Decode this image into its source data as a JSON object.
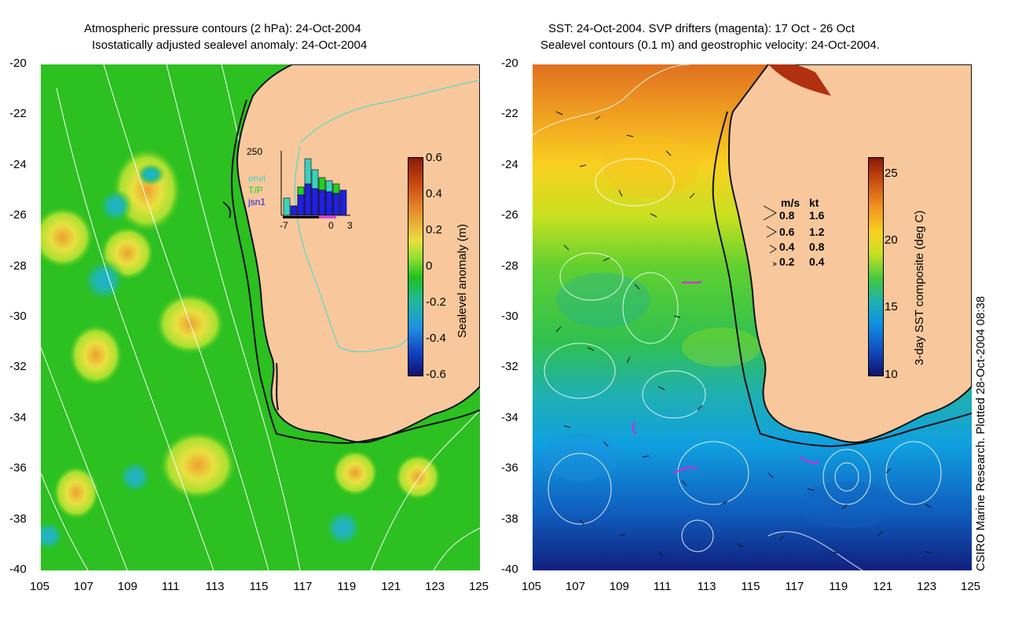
{
  "left": {
    "title1": "Atmospheric pressure contours (2 hPa): 24-Oct-2004",
    "title2": "Isostatically adjusted sealevel anomaly: 24-Oct-2004",
    "colorbar_label": "Sealevel anomaly (m)",
    "colorbar_ticks": [
      "0.6",
      "0.4",
      "0.2",
      "0",
      "-0.2",
      "-0.4",
      "-0.6"
    ],
    "inset": {
      "ymax": "250",
      "legend": [
        "envi",
        "T/P",
        "jsn1"
      ],
      "legend_colors": [
        "#3bd0c0",
        "#20d020",
        "#2020e0"
      ],
      "xticks": [
        "-7",
        "0",
        "3"
      ]
    }
  },
  "right": {
    "title1": "SST: 24-Oct-2004. SVP drifters (magenta): 17 Oct - 26 Oct",
    "title2": "Sealevel contours (0.1 m) and geostrophic velocity: 24-Oct-2004.",
    "colorbar_label": "3-day SST composite (deg C)",
    "colorbar_ticks": [
      "25",
      "20",
      "15",
      "10"
    ],
    "velocity_legend": {
      "headers": [
        "m/s",
        "kt"
      ],
      "rows": [
        [
          "0.8",
          "1.6"
        ],
        [
          "0.6",
          "1.2"
        ],
        [
          "0.4",
          "0.8"
        ],
        [
          "0.2",
          "0.4"
        ]
      ]
    }
  },
  "axes": {
    "lat_ticks": [
      "-20",
      "-22",
      "-24",
      "-26",
      "-28",
      "-30",
      "-32",
      "-34",
      "-36",
      "-38",
      "-40"
    ],
    "lon_ticks": [
      "105",
      "107",
      "109",
      "111",
      "113",
      "115",
      "117",
      "119",
      "121",
      "123",
      "125"
    ]
  },
  "credit": "CSIRO Marine Research. Plotted 28-Oct-2004 08:38",
  "colors": {
    "land": "#f8c89c",
    "ocean_left": "#2cc020",
    "coast": "#111111"
  }
}
